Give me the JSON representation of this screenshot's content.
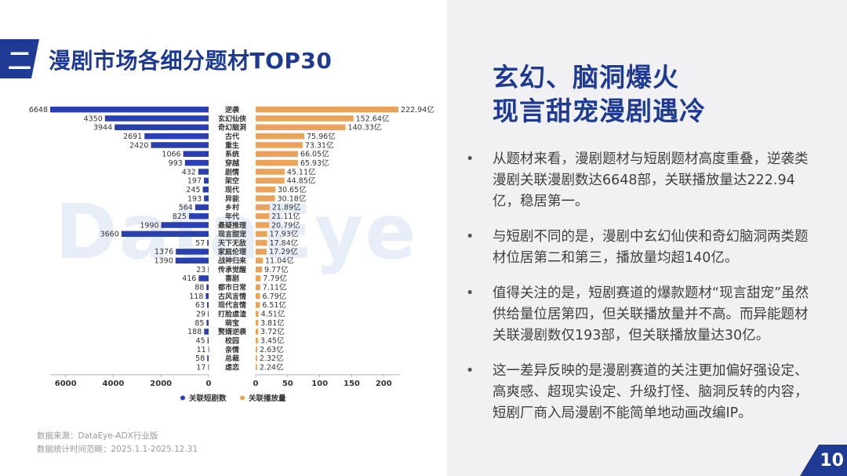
{
  "header": {
    "badge": "二",
    "title": "漫剧市场各细分题材TOP30"
  },
  "watermark": "DataEye",
  "chart_data": {
    "type": "bar",
    "orientation": "horizontal-butterfly",
    "categories": [
      "逆袭",
      "玄幻仙侠",
      "奇幻脑洞",
      "古代",
      "重生",
      "系统",
      "穿越",
      "剧情",
      "架空",
      "现代",
      "异能",
      "乡村",
      "年代",
      "悬疑推理",
      "现言甜宠",
      "天下无敌",
      "家庭伦理",
      "战神归来",
      "传承觉醒",
      "喜剧",
      "都市日常",
      "古风言情",
      "现代言情",
      "打脸虐渣",
      "萌宝",
      "赘婿逆袭",
      "校园",
      "亲情",
      "总裁",
      "虐恋"
    ],
    "series": [
      {
        "name": "关联短剧数",
        "color": "#2a3fb0",
        "values": [
          6648,
          4350,
          3944,
          2691,
          2420,
          1066,
          993,
          432,
          197,
          245,
          193,
          564,
          825,
          1990,
          3660,
          57,
          1376,
          1390,
          23,
          416,
          88,
          118,
          63,
          29,
          85,
          188,
          45,
          11,
          58,
          17
        ],
        "labels": [
          "6648",
          "4350",
          "3944",
          "2691",
          "2420",
          "1066",
          "993",
          "432",
          "197",
          "245",
          "193",
          "564",
          "825",
          "1990",
          "3660",
          "57",
          "1376",
          "1390",
          "23",
          "416",
          "88",
          "118",
          "63",
          "29",
          "85",
          "188",
          "45",
          "11",
          "58",
          "17"
        ]
      },
      {
        "name": "关联播放量",
        "color": "#e9a35a",
        "unit": "亿",
        "values": [
          222.94,
          152.64,
          140.33,
          75.96,
          73.31,
          66.05,
          65.93,
          45.11,
          44.85,
          30.65,
          30.18,
          21.89,
          21.11,
          20.79,
          17.93,
          17.84,
          17.29,
          11.04,
          9.77,
          7.79,
          7.11,
          6.79,
          6.51,
          4.51,
          3.81,
          3.72,
          3.45,
          2.63,
          2.32,
          2.24
        ],
        "labels": [
          "222.94亿",
          "152.64亿",
          "140.33亿",
          "75.96亿",
          "73.31亿",
          "66.05亿",
          "65.93亿",
          "45.11亿",
          "44.85亿",
          "30.65亿",
          "30.18亿",
          "21.89亿",
          "21.11亿",
          "20.79亿",
          "17.93亿",
          "17.84亿",
          "17.29亿",
          "11.04亿",
          "9.77亿",
          "7.79亿",
          "7.11亿",
          "6.79亿",
          "6.51亿",
          "4.51亿",
          "3.81亿",
          "3.72亿",
          "3.45亿",
          "2.63亿",
          "2.32亿",
          "2.24亿"
        ]
      }
    ],
    "left_axis": {
      "ticks": [
        6000,
        4000,
        2000,
        0
      ],
      "max": 6648
    },
    "right_axis": {
      "ticks": [
        0,
        50,
        100,
        150,
        200
      ],
      "max": 222.94
    },
    "legend": [
      "关联短剧数",
      "关联播放量"
    ]
  },
  "source": {
    "line1": "数据来源：DataEye-ADX行业版",
    "line2": "数据统计时间范畴：2025.1.1-2025.12.31"
  },
  "headline": {
    "line1": "玄幻、脑洞爆火",
    "line2": "现言甜宠漫剧遇冷"
  },
  "bullets": [
    {
      "dot": "•",
      "text": "从题材来看，漫剧题材与短剧题材高度重叠，逆袭类漫剧关联漫剧数达6648部，关联播放量达222.94亿，稳居第一。"
    },
    {
      "dot": "•",
      "text": "与短剧不同的是，漫剧中玄幻仙侠和奇幻脑洞两类题材位居第二和第三，播放量均超140亿。"
    },
    {
      "dot": "•",
      "text": "值得关注的是，短剧赛道的爆款题材“现言甜宠”虽然供给量位居第四，但关联播放量并不高。而异能题材关联漫剧数仅193部，但关联播放量达30亿。"
    },
    {
      "dot": "•",
      "text": "这一差异反映的是漫剧赛道的关注更加偏好强设定、高爽感、超现实设定、升级打怪、脑洞反转的内容，短剧厂商入局漫剧不能简单地动画改编IP。"
    }
  ],
  "page_number": "10"
}
